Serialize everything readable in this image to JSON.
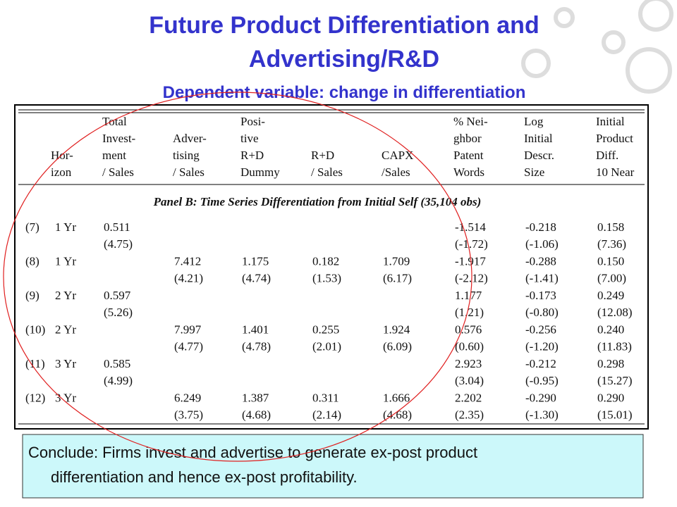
{
  "header": {
    "title": [
      "Future Product Differentiation and",
      "Advertising/R&D"
    ],
    "subtitle": "Dependent variable:  change in differentiation"
  },
  "table": {
    "columns": [
      [
        "Hor-",
        "izon"
      ],
      [
        "Total",
        "Invest-",
        "ment",
        "/ Sales"
      ],
      [
        "Adver-",
        "tising",
        "/ Sales"
      ],
      [
        "Posi-",
        "tive",
        "R+D",
        "Dummy"
      ],
      [
        "R+D",
        "/ Sales"
      ],
      [
        "CAPX",
        "/Sales"
      ],
      [
        "% Nei-",
        "ghbor",
        "Patent",
        "Words"
      ],
      [
        "Log",
        "Initial",
        "Descr.",
        "Size"
      ],
      [
        "Initial",
        "Product",
        "Diff.",
        "10 Near"
      ]
    ],
    "panel": "Panel B: Time Series Differentiation from Initial Self (35,104 obs)",
    "rows": [
      {
        "id": "(7)",
        "horizon": "1 Yr",
        "coef": [
          "0.511",
          null,
          null,
          null,
          null,
          "-1.514",
          "-0.218",
          "0.158"
        ],
        "tstat": [
          "(4.75)",
          null,
          null,
          null,
          null,
          "(-1.72)",
          "(-1.06)",
          "(7.36)"
        ]
      },
      {
        "id": "(8)",
        "horizon": "1 Yr",
        "coef": [
          null,
          "7.412",
          "1.175",
          "0.182",
          "1.709",
          "-1.917",
          "-0.288",
          "0.150"
        ],
        "tstat": [
          null,
          "(4.21)",
          "(4.74)",
          "(1.53)",
          "(6.17)",
          "(-2.12)",
          "(-1.41)",
          "(7.00)"
        ]
      },
      {
        "id": "(9)",
        "horizon": "2 Yr",
        "coef": [
          "0.597",
          null,
          null,
          null,
          null,
          "1.177",
          "-0.173",
          "0.249"
        ],
        "tstat": [
          "(5.26)",
          null,
          null,
          null,
          null,
          "(1.21)",
          "(-0.80)",
          "(12.08)"
        ]
      },
      {
        "id": "(10)",
        "horizon": "2 Yr",
        "coef": [
          null,
          "7.997",
          "1.401",
          "0.255",
          "1.924",
          "0.576",
          "-0.256",
          "0.240"
        ],
        "tstat": [
          null,
          "(4.77)",
          "(4.78)",
          "(2.01)",
          "(6.09)",
          "(0.60)",
          "(-1.20)",
          "(11.83)"
        ]
      },
      {
        "id": "(11)",
        "horizon": "3 Yr",
        "coef": [
          "0.585",
          null,
          null,
          null,
          null,
          "2.923",
          "-0.212",
          "0.298"
        ],
        "tstat": [
          "(4.99)",
          null,
          null,
          null,
          null,
          "(3.04)",
          "(-0.95)",
          "(15.27)"
        ]
      },
      {
        "id": "(12)",
        "horizon": "3 Yr",
        "coef": [
          null,
          "6.249",
          "1.387",
          "0.311",
          "1.666",
          "2.202",
          "-0.290",
          "0.290"
        ],
        "tstat": [
          null,
          "(3.75)",
          "(4.68)",
          "(2.14)",
          "(4.68)",
          "(2.35)",
          "(-1.30)",
          "(15.01)"
        ]
      }
    ]
  },
  "conclusion": [
    "Conclude: Firms invest and advertise to generate ex-post product",
    "differentiation and hence ex-post profitability."
  ]
}
